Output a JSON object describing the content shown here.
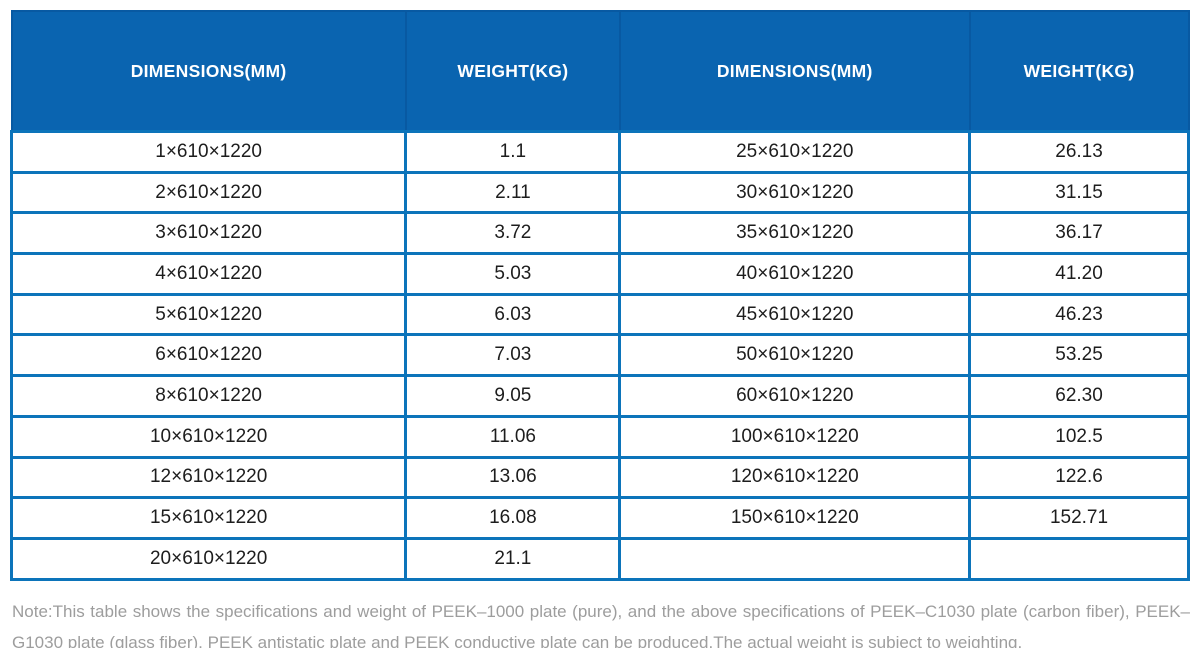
{
  "colors": {
    "header_bg": "#0a64b0",
    "header_separator": "#0859a2",
    "body_border": "#0c74ba",
    "body_text": "#1d1d1d",
    "note_text": "#9d9d9d"
  },
  "table": {
    "headers": [
      "DIMENSIONS(MM)",
      "WEIGHT(KG)",
      "DIMENSIONS(MM)",
      "WEIGHT(KG)"
    ],
    "rows": [
      [
        "1×610×1220",
        "1.1",
        "25×610×1220",
        "26.13"
      ],
      [
        "2×610×1220",
        "2.11",
        "30×610×1220",
        "31.15"
      ],
      [
        "3×610×1220",
        "3.72",
        "35×610×1220",
        "36.17"
      ],
      [
        "4×610×1220",
        "5.03",
        "40×610×1220",
        "41.20"
      ],
      [
        "5×610×1220",
        "6.03",
        "45×610×1220",
        "46.23"
      ],
      [
        "6×610×1220",
        "7.03",
        "50×610×1220",
        "53.25"
      ],
      [
        "8×610×1220",
        "9.05",
        "60×610×1220",
        "62.30"
      ],
      [
        "10×610×1220",
        "11.06",
        "100×610×1220",
        "102.5"
      ],
      [
        "12×610×1220",
        "13.06",
        "120×610×1220",
        "122.6"
      ],
      [
        "15×610×1220",
        "16.08",
        "150×610×1220",
        "152.71"
      ],
      [
        "20×610×1220",
        "21.1",
        "",
        ""
      ]
    ]
  },
  "note": {
    "text": "Note:This table shows the specifications and weight of PEEK–1000 plate (pure), and the above specifications of PEEK–C1030 plate (carbon fiber), PEEK–G1030 plate (glass fiber), PEEK antistatic plate and PEEK conductive plate can be produced.The actual weight is subject to weighting."
  }
}
